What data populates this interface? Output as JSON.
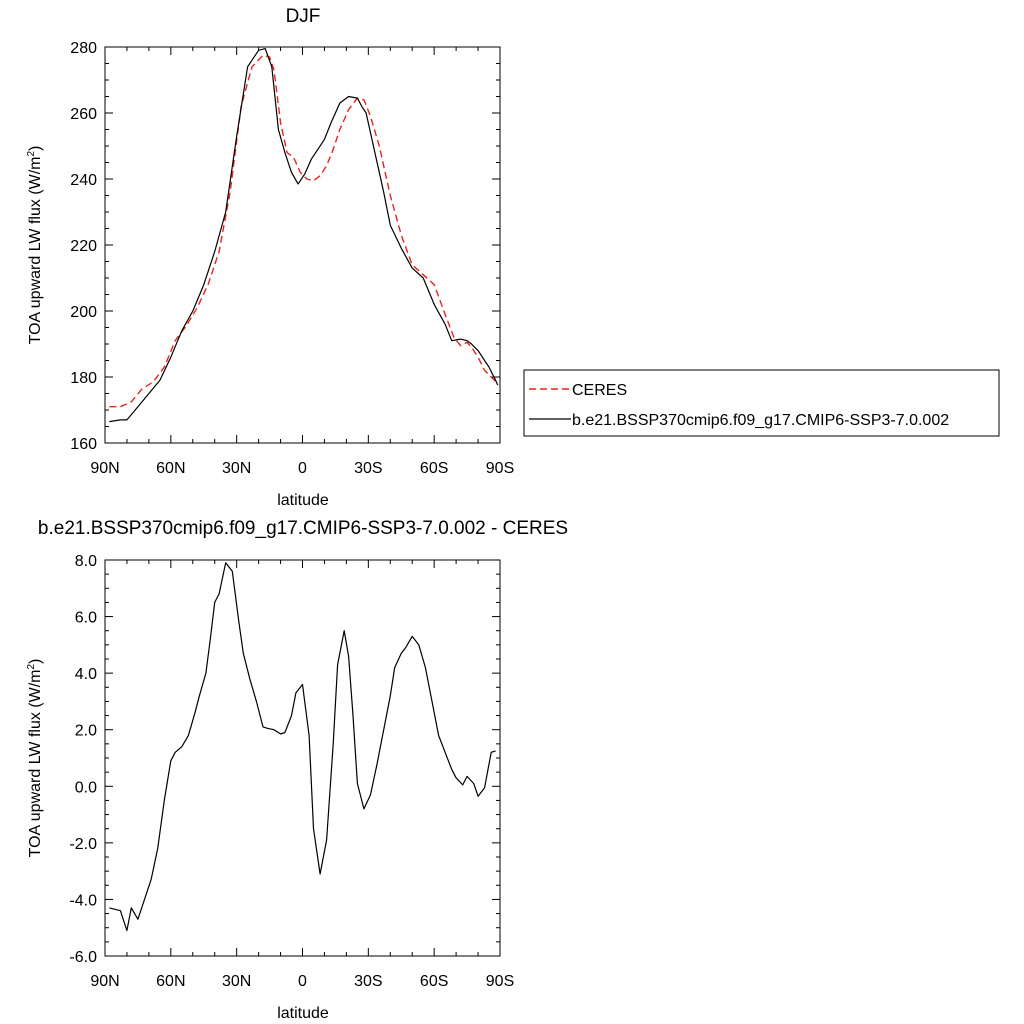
{
  "chart_data": [
    {
      "type": "line",
      "title": "DJF",
      "xlabel": "latitude",
      "ylabel": "TOA upward LW flux (W/m",
      "ylabel_sup": "2",
      "ylabel_tail": ")",
      "xlim": [
        90,
        -90
      ],
      "ylim": [
        160,
        280
      ],
      "x_ticks": [
        90,
        60,
        30,
        0,
        -30,
        -60,
        -90
      ],
      "x_tick_labels": [
        "90N",
        "60N",
        "30N",
        "0",
        "30S",
        "60S",
        "90S"
      ],
      "y_ticks": [
        160,
        180,
        200,
        220,
        240,
        260,
        280
      ],
      "y_tick_labels": [
        "160",
        "180",
        "200",
        "220",
        "240",
        "260",
        "280"
      ],
      "grid": false,
      "legend": {
        "position": "right"
      },
      "series": [
        {
          "name": "CERES",
          "color": "#e8231f",
          "dash": "dashed",
          "x": [
            88,
            83,
            78,
            73,
            68,
            63,
            58,
            53,
            48,
            43,
            38,
            33,
            28,
            23,
            18,
            15,
            13,
            10,
            7,
            4,
            1,
            -2,
            -5,
            -8,
            -11,
            -14,
            -17,
            -21,
            -25,
            -28,
            -31,
            -35,
            -40,
            -45,
            -50,
            -55,
            -60,
            -65,
            -69,
            -72,
            -75,
            -77,
            -80,
            -83,
            -86,
            -89
          ],
          "values": [
            171,
            171,
            172.5,
            176.5,
            178.5,
            183,
            191,
            195.5,
            201,
            208,
            218,
            236,
            262,
            274,
            277.5,
            277,
            273,
            257,
            248,
            246.5,
            242,
            240,
            239.5,
            241,
            244,
            249,
            255,
            261,
            264.5,
            264,
            259,
            250,
            235,
            223,
            214,
            211,
            208,
            199,
            192,
            189.5,
            190.5,
            189,
            186,
            182,
            180,
            178
          ]
        },
        {
          "name": "b.e21.BSSP370cmip6.f09_g17.CMIP6-SSP3-7.0.002",
          "color": "#000000",
          "dash": "solid",
          "x": [
            88,
            83,
            80,
            75,
            70,
            65,
            60,
            55,
            50,
            45,
            40,
            35,
            30,
            25,
            20,
            17,
            14,
            11,
            8,
            5,
            2,
            -1,
            -4,
            -7,
            -10,
            -13,
            -17,
            -21,
            -25,
            -27,
            -29,
            -33,
            -37,
            -40,
            -45,
            -50,
            -55,
            -60,
            -65,
            -68,
            -72,
            -75,
            -77,
            -80,
            -83,
            -85,
            -88,
            -89
          ],
          "values": [
            166.5,
            167,
            167,
            171,
            175,
            179,
            186,
            194,
            200,
            208,
            218,
            230,
            253,
            274,
            279,
            279.5,
            274,
            255,
            248,
            242,
            238.5,
            241.5,
            246,
            249,
            252,
            257,
            263,
            265,
            264.5,
            262,
            260,
            248,
            236,
            226,
            219,
            213,
            210,
            202,
            196,
            191,
            191.5,
            191,
            190,
            188,
            185,
            183,
            179,
            177.5
          ]
        }
      ]
    },
    {
      "type": "line",
      "title": "b.e21.BSSP370cmip6.f09_g17.CMIP6-SSP3-7.0.002 - CERES",
      "xlabel": "latitude",
      "ylabel": "TOA upward LW flux (W/m",
      "ylabel_sup": "2",
      "ylabel_tail": ")",
      "xlim": [
        90,
        -90
      ],
      "ylim": [
        -6,
        8
      ],
      "x_ticks": [
        90,
        60,
        30,
        0,
        -30,
        -60,
        -90
      ],
      "x_tick_labels": [
        "90N",
        "60N",
        "30N",
        "0",
        "30S",
        "60S",
        "90S"
      ],
      "y_ticks": [
        -6,
        -4,
        -2,
        0,
        2,
        4,
        6,
        8
      ],
      "y_tick_labels": [
        "-6.0",
        "-4.0",
        "-2.0",
        "0.0",
        "2.0",
        "4.0",
        "6.0",
        "8.0"
      ],
      "grid": false,
      "series": [
        {
          "color": "#000000",
          "dash": "solid",
          "x": [
            88,
            83,
            80,
            78,
            75,
            72,
            69,
            66,
            63,
            60,
            58,
            55,
            52,
            49,
            47,
            44,
            42,
            40,
            38,
            35,
            32,
            29,
            27,
            24,
            21,
            18,
            16,
            13,
            10,
            8,
            5,
            3,
            0,
            -3,
            -5,
            -8,
            -11,
            -14,
            -16,
            -19,
            -21,
            -23,
            -25,
            -28,
            -31,
            -34,
            -37,
            -40,
            -42,
            -45,
            -47,
            -50,
            -53,
            -56,
            -59,
            -62,
            -65,
            -68,
            -70,
            -73,
            -75,
            -78,
            -80,
            -83,
            -86,
            -88
          ],
          "values": [
            -4.3,
            -4.4,
            -5.1,
            -4.3,
            -4.7,
            -4.0,
            -3.3,
            -2.2,
            -0.5,
            0.9,
            1.2,
            1.4,
            1.8,
            2.6,
            3.2,
            4.0,
            5.2,
            6.5,
            6.8,
            7.9,
            7.6,
            5.8,
            4.7,
            3.8,
            3.0,
            2.1,
            2.05,
            2.0,
            1.85,
            1.9,
            2.5,
            3.3,
            3.6,
            1.8,
            -1.5,
            -3.1,
            -1.9,
            1.5,
            4.3,
            5.5,
            4.6,
            2.5,
            0.1,
            -0.8,
            -0.3,
            0.8,
            2.0,
            3.2,
            4.2,
            4.7,
            4.9,
            5.3,
            5.0,
            4.2,
            3.0,
            1.8,
            1.2,
            0.6,
            0.3,
            0.05,
            0.35,
            0.1,
            -0.35,
            -0.05,
            1.2,
            1.25
          ]
        }
      ]
    }
  ]
}
